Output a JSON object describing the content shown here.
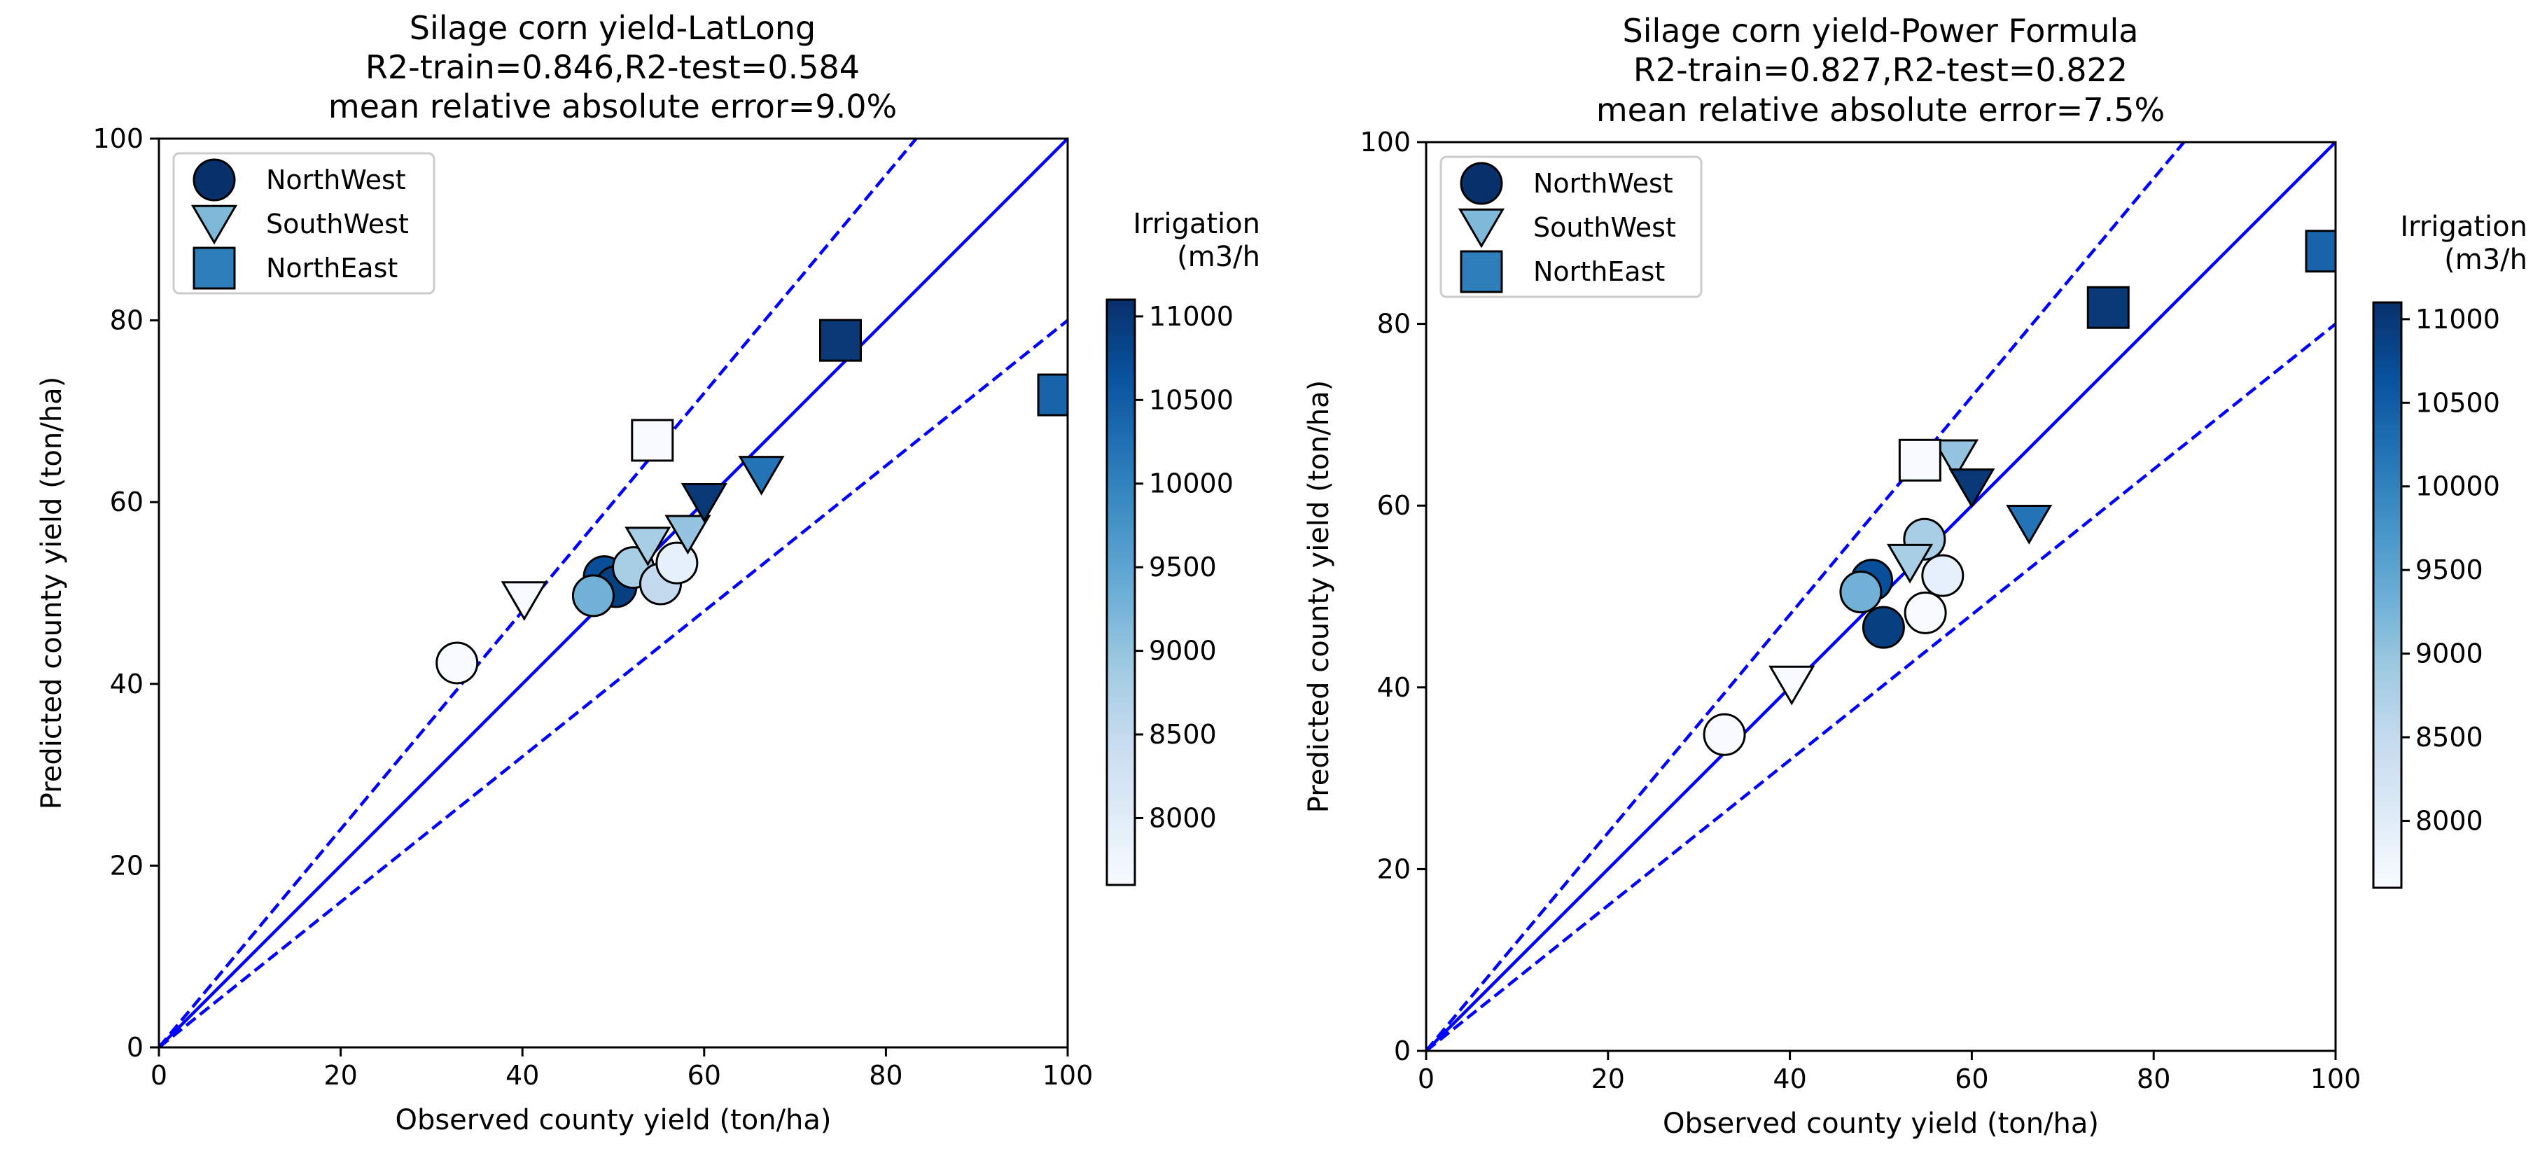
{
  "chart_data": [
    {
      "type": "scatter",
      "title_lines": [
        "Silage corn yield-LatLong",
        "R2-train=0.846,R2-test=0.584",
        "mean relative absolute error=9.0%"
      ],
      "xlabel": "Observed county yield (ton/ha)",
      "ylabel": "Predicted county yield (ton/ha)",
      "xlim": [
        0,
        100
      ],
      "ylim": [
        0,
        100
      ],
      "xticks": [
        0,
        20,
        40,
        60,
        80,
        100
      ],
      "yticks": [
        0,
        20,
        40,
        60,
        80,
        100
      ],
      "reference_lines": [
        {
          "slope": 1.0,
          "style": "solid"
        },
        {
          "slope": 1.2,
          "style": "dashed"
        },
        {
          "slope": 0.8,
          "style": "dashed"
        }
      ],
      "legend": {
        "position": "upper-left",
        "entries": [
          "NorthWest",
          "SouthWest",
          "NorthEast"
        ]
      },
      "colorbar": {
        "label_lines": [
          "Irrigation",
          "(m3/h"
        ],
        "min": 7600,
        "max": 11100,
        "ticks": [
          8000,
          8500,
          9000,
          9500,
          10000,
          10500,
          11000
        ]
      },
      "series": [
        {
          "name": "NorthWest",
          "marker": "circle",
          "points": [
            {
              "x": 32.8,
              "y": 42.3,
              "c": 7600
            },
            {
              "x": 49.0,
              "y": 51.8,
              "c": 10700
            },
            {
              "x": 50.3,
              "y": 50.7,
              "c": 10900
            },
            {
              "x": 52.2,
              "y": 52.8,
              "c": 8800
            },
            {
              "x": 47.8,
              "y": 49.7,
              "c": 9300
            },
            {
              "x": 55.2,
              "y": 51.0,
              "c": 8500
            },
            {
              "x": 57.0,
              "y": 53.3,
              "c": 7900
            }
          ]
        },
        {
          "name": "SouthWest",
          "marker": "triangle-down",
          "points": [
            {
              "x": 40.2,
              "y": 49.5,
              "c": 7600
            },
            {
              "x": 53.8,
              "y": 55.5,
              "c": 8800
            },
            {
              "x": 58.2,
              "y": 56.8,
              "c": 9000
            },
            {
              "x": 60.0,
              "y": 60.3,
              "c": 11000
            },
            {
              "x": 66.3,
              "y": 63.3,
              "c": 10200
            }
          ]
        },
        {
          "name": "NorthEast",
          "marker": "square",
          "points": [
            {
              "x": 54.3,
              "y": 66.8,
              "c": 7600
            },
            {
              "x": 75.0,
              "y": 77.8,
              "c": 11000
            },
            {
              "x": 99.0,
              "y": 71.8,
              "c": 10400
            }
          ]
        }
      ]
    },
    {
      "type": "scatter",
      "title_lines": [
        "Silage corn yield-Power Formula",
        "R2-train=0.827,R2-test=0.822",
        "mean relative absolute error=7.5%"
      ],
      "xlabel": "Observed county yield (ton/ha)",
      "ylabel": "Predicted county yield (ton/ha)",
      "xlim": [
        0,
        100
      ],
      "ylim": [
        0,
        100
      ],
      "xticks": [
        0,
        20,
        40,
        60,
        80,
        100
      ],
      "yticks": [
        0,
        20,
        40,
        60,
        80,
        100
      ],
      "reference_lines": [
        {
          "slope": 1.0,
          "style": "solid"
        },
        {
          "slope": 1.2,
          "style": "dashed"
        },
        {
          "slope": 0.8,
          "style": "dashed"
        }
      ],
      "legend": {
        "position": "upper-left",
        "entries": [
          "NorthWest",
          "SouthWest",
          "NorthEast"
        ]
      },
      "colorbar": {
        "label_lines": [
          "Irrigation",
          "(m3/h"
        ],
        "min": 7600,
        "max": 11100,
        "ticks": [
          8000,
          8500,
          9000,
          9500,
          10000,
          10500,
          11000
        ]
      },
      "series": [
        {
          "name": "NorthWest",
          "marker": "circle",
          "points": [
            {
              "x": 32.8,
              "y": 34.8,
              "c": 7600
            },
            {
              "x": 49.0,
              "y": 51.8,
              "c": 10700
            },
            {
              "x": 50.3,
              "y": 46.6,
              "c": 10900
            },
            {
              "x": 47.8,
              "y": 50.5,
              "c": 9300
            },
            {
              "x": 54.8,
              "y": 56.3,
              "c": 8800
            },
            {
              "x": 56.8,
              "y": 52.3,
              "c": 7900
            },
            {
              "x": 54.9,
              "y": 48.2,
              "c": 7600
            }
          ]
        },
        {
          "name": "SouthWest",
          "marker": "triangle-down",
          "points": [
            {
              "x": 40.2,
              "y": 40.6,
              "c": 7600
            },
            {
              "x": 53.2,
              "y": 54.0,
              "c": 8800
            },
            {
              "x": 58.2,
              "y": 65.5,
              "c": 9000
            },
            {
              "x": 60.0,
              "y": 62.3,
              "c": 11000
            },
            {
              "x": 66.3,
              "y": 58.3,
              "c": 10200
            }
          ]
        },
        {
          "name": "NorthEast",
          "marker": "square",
          "points": [
            {
              "x": 54.3,
              "y": 65.0,
              "c": 7600
            },
            {
              "x": 75.0,
              "y": 81.8,
              "c": 11000
            },
            {
              "x": 99.0,
              "y": 88.0,
              "c": 10400
            }
          ]
        }
      ]
    }
  ]
}
